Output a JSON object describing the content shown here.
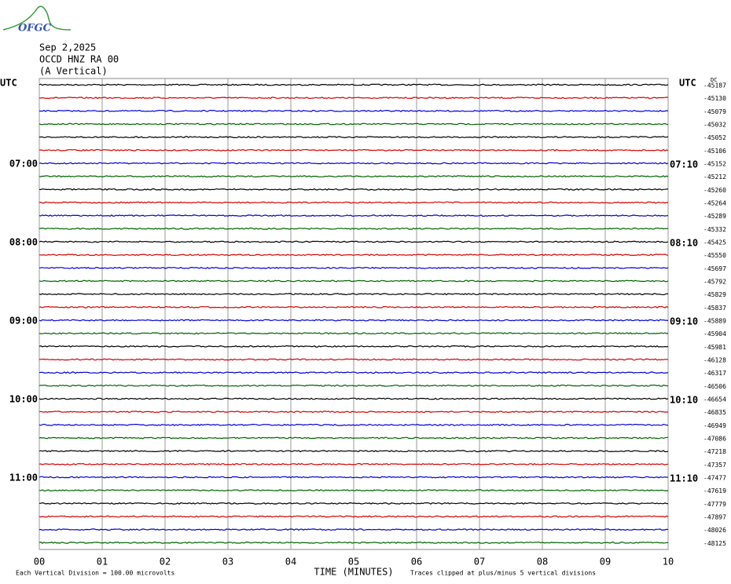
{
  "chart_data": {
    "type": "helicorder",
    "logo": "OFGC",
    "date": "Sep 2,2025",
    "station": "OCCD HNZ RA 00",
    "component": "(A Vertical)",
    "left_axis_title": "UTC",
    "right_axis_title": "UTC",
    "unit_label": "DC",
    "left_hour_labels": [
      "07:00",
      "08:00",
      "09:00",
      "10:00",
      "11:00"
    ],
    "right_hour_labels": [
      "07:10",
      "08:10",
      "09:10",
      "10:10",
      "11:10"
    ],
    "trace_offsets": [
      -45187,
      -45130,
      -45079,
      -45032,
      -45052,
      -45106,
      -45152,
      -45212,
      -45260,
      -45264,
      -45289,
      -45332,
      -45425,
      -45550,
      -45697,
      -45792,
      -45829,
      -45837,
      -45889,
      -45904,
      -45981,
      -46128,
      -46317,
      -46506,
      -46654,
      -46835,
      -46949,
      -47086,
      -47218,
      -47357,
      -47477,
      -47619,
      -47779,
      -47897,
      -48026,
      -48125
    ],
    "colors": [
      "#000000",
      "#d40000",
      "#0000d4",
      "#006400"
    ],
    "xlabel": "TIME (MINUTES)",
    "xlim": [
      0,
      10
    ],
    "xticks": [
      {
        "value": 0,
        "label": "00"
      },
      {
        "value": 1,
        "label": "01"
      },
      {
        "value": 2,
        "label": "02"
      },
      {
        "value": 3,
        "label": "03"
      },
      {
        "value": 4,
        "label": "04"
      },
      {
        "value": 5,
        "label": "05"
      },
      {
        "value": 6,
        "label": "06"
      },
      {
        "value": 7,
        "label": "07"
      },
      {
        "value": 8,
        "label": "08"
      },
      {
        "value": 9,
        "label": "09"
      },
      {
        "value": 10,
        "label": "10"
      }
    ],
    "footnote_left": "Each Vertical Division =  100.00 microvolts",
    "footnote_right": "Traces clipped at plus/minus 5 vertical divisions",
    "grid": true
  }
}
